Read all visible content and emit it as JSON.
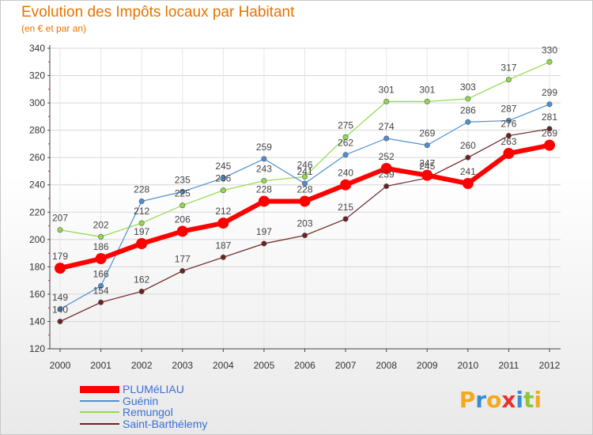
{
  "chart_data": {
    "type": "line",
    "title": "Evolution des Impôts locaux par Habitant",
    "subtitle": "(en € et par an)",
    "xlabel": "",
    "ylabel": "",
    "categories": [
      "2000",
      "2001",
      "2002",
      "2003",
      "2004",
      "2005",
      "2006",
      "2007",
      "2008",
      "2009",
      "2010",
      "2011",
      "2012"
    ],
    "ylim": [
      120,
      340
    ],
    "yticks": [
      120,
      140,
      160,
      180,
      200,
      220,
      240,
      260,
      280,
      300,
      320,
      340
    ],
    "grid": "horizontal",
    "legend_position": "bottom-left",
    "series": [
      {
        "name": "PLUMéLIAU",
        "color": "#ff0000",
        "emphasis": true,
        "values": [
          179,
          186,
          197,
          206,
          212,
          228,
          228,
          240,
          252,
          247,
          241,
          263,
          269
        ]
      },
      {
        "name": "Guénin",
        "color": "#4f8fcf",
        "emphasis": false,
        "values": [
          149,
          166,
          228,
          235,
          245,
          259,
          241,
          262,
          274,
          269,
          286,
          287,
          299
        ]
      },
      {
        "name": "Remungol",
        "color": "#8fdb4b",
        "emphasis": false,
        "values": [
          207,
          202,
          212,
          225,
          236,
          243,
          246,
          275,
          301,
          301,
          303,
          317,
          330
        ]
      },
      {
        "name": "Saint-Barthélemy",
        "color": "#6b2222",
        "emphasis": false,
        "values": [
          140,
          154,
          162,
          177,
          187,
          197,
          203,
          215,
          239,
          245,
          260,
          276,
          281
        ]
      }
    ]
  },
  "brand": {
    "letters": [
      {
        "ch": "P",
        "color": "#f7a81b"
      },
      {
        "ch": "r",
        "color": "#3a8bd6"
      },
      {
        "ch": "o",
        "color": "#f7a81b"
      },
      {
        "ch": "x",
        "color": "#e8312a"
      },
      {
        "ch": "i",
        "color": "#3a8bd6"
      },
      {
        "ch": "t",
        "color": "#8bc53f"
      },
      {
        "ch": "i",
        "color": "#f7a81b"
      }
    ]
  }
}
